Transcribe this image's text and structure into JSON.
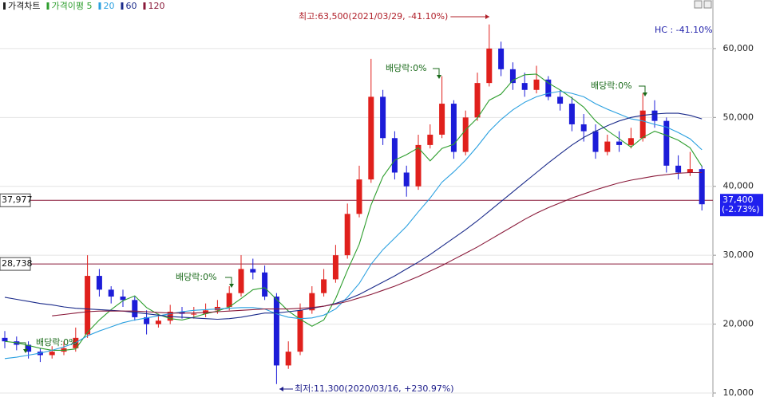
{
  "chart_data": {
    "type": "candlestick",
    "legend_title": "가격차트",
    "up_color": "#e0201c",
    "down_color": "#1c1cd8",
    "open": [
      18000,
      17500,
      17000,
      16000,
      15500,
      16000,
      16500,
      18500,
      27000,
      25000,
      24000,
      23500,
      21000,
      20000,
      20500,
      21800,
      21500,
      21500,
      22000,
      22500,
      24500,
      28000,
      27500,
      24000,
      14000,
      16000,
      22000,
      24500,
      26500,
      30000,
      36000,
      41000,
      53000,
      47000,
      42000,
      40000,
      46000,
      47500,
      52000,
      45000,
      50000,
      55000,
      60000,
      57000,
      55000,
      54000,
      55500,
      53000,
      52000,
      49000,
      48000,
      45000,
      46500,
      46000,
      47000,
      51000,
      49500,
      43000,
      42000,
      42500
    ],
    "high": [
      19000,
      18200,
      17500,
      16500,
      16800,
      17500,
      19500,
      30000,
      28000,
      25500,
      25000,
      24000,
      22000,
      21500,
      22800,
      22500,
      22500,
      23000,
      23500,
      25500,
      30000,
      29500,
      28500,
      24500,
      17500,
      23000,
      25500,
      28000,
      31500,
      37500,
      43000,
      58500,
      54000,
      48000,
      43000,
      47500,
      49000,
      56000,
      52500,
      51000,
      56500,
      63500,
      61000,
      58000,
      56500,
      57500,
      56000,
      54000,
      53000,
      50500,
      49000,
      47500,
      48000,
      48500,
      53500,
      52500,
      50000,
      44500,
      45000,
      43000
    ],
    "low": [
      16500,
      16200,
      15000,
      14500,
      15000,
      15500,
      16000,
      18000,
      24000,
      23000,
      22500,
      20500,
      18500,
      19500,
      20000,
      20800,
      20800,
      21000,
      21500,
      22000,
      24000,
      26500,
      23500,
      11300,
      13500,
      15500,
      21500,
      24000,
      26000,
      29500,
      35500,
      40500,
      46000,
      41000,
      38500,
      39500,
      45500,
      47000,
      44000,
      44500,
      49500,
      54500,
      56000,
      54000,
      53000,
      53500,
      52500,
      51000,
      48000,
      46500,
      44000,
      44500,
      45000,
      45500,
      46500,
      48500,
      42000,
      41000,
      41500,
      36500
    ],
    "close": [
      17500,
      17000,
      16000,
      15500,
      16000,
      16500,
      18000,
      27000,
      25000,
      24000,
      23500,
      21000,
      20000,
      20500,
      21800,
      21500,
      21500,
      22000,
      22500,
      24500,
      28000,
      27500,
      24000,
      14000,
      16000,
      22000,
      24500,
      26500,
      30000,
      36000,
      41000,
      53000,
      47000,
      42000,
      40000,
      46000,
      47500,
      52000,
      45000,
      50000,
      55000,
      60000,
      57000,
      55000,
      54000,
      55500,
      53000,
      52000,
      49000,
      48000,
      45000,
      46500,
      46000,
      47000,
      51000,
      49500,
      43000,
      42000,
      42500,
      37400
    ],
    "series": [
      {
        "name": "가격이평 5",
        "color": "#2e9e2e",
        "values": [
          17500,
          17300,
          16900,
          16500,
          16200,
          16200,
          16400,
          18800,
          20600,
          22100,
          23400,
          24100,
          22400,
          21400,
          20800,
          20600,
          21000,
          21500,
          21900,
          22500,
          23700,
          25000,
          25300,
          23600,
          21900,
          20700,
          19700,
          20600,
          23700,
          27800,
          31600,
          37300,
          41400,
          43800,
          44600,
          45600,
          43700,
          45500,
          46100,
          48200,
          49900,
          52500,
          53400,
          55400,
          56200,
          56300,
          55000,
          54000,
          52800,
          51500,
          49500,
          48100,
          46900,
          45700,
          47100,
          48000,
          47400,
          46700,
          45600,
          42900
        ]
      },
      {
        "name": "20",
        "color": "#2aa0e0",
        "values": [
          15000,
          15200,
          15500,
          15800,
          16200,
          16700,
          17300,
          18300,
          19000,
          19600,
          20200,
          20600,
          20900,
          21200,
          21500,
          21800,
          22000,
          22100,
          22200,
          22300,
          22400,
          22400,
          22200,
          21500,
          21000,
          20800,
          20900,
          21300,
          22200,
          23900,
          25900,
          28700,
          30800,
          32500,
          34200,
          36300,
          38300,
          40600,
          42100,
          43800,
          45800,
          48000,
          49700,
          51100,
          52200,
          53000,
          53500,
          53800,
          53500,
          53000,
          52000,
          51200,
          50500,
          49800,
          49500,
          49000,
          48600,
          47800,
          46900,
          45300
        ]
      },
      {
        "name": "60",
        "color": "#1a2a8a",
        "values": [
          23900,
          23600,
          23300,
          23000,
          22800,
          22500,
          22300,
          22200,
          22100,
          22000,
          21900,
          21700,
          21500,
          21300,
          21100,
          21000,
          20900,
          20800,
          20700,
          20800,
          21000,
          21300,
          21600,
          21600,
          21800,
          22000,
          22300,
          22600,
          23000,
          23600,
          24300,
          25200,
          26100,
          27000,
          28000,
          29000,
          30100,
          31300,
          32500,
          33700,
          35000,
          36400,
          37800,
          39200,
          40600,
          42000,
          43400,
          44700,
          46000,
          47100,
          48000,
          48800,
          49500,
          50000,
          50300,
          50500,
          50600,
          50600,
          50300,
          49800
        ]
      },
      {
        "name": "120",
        "color": "#8a1a3a",
        "values": [
          null,
          null,
          null,
          null,
          21200,
          21400,
          21600,
          21800,
          21900,
          21900,
          21900,
          21900,
          21800,
          21700,
          21600,
          21600,
          21600,
          21700,
          21800,
          21900,
          22000,
          22100,
          22200,
          22200,
          22200,
          22300,
          22400,
          22600,
          22900,
          23300,
          23800,
          24300,
          24900,
          25500,
          26200,
          26900,
          27700,
          28500,
          29400,
          30300,
          31200,
          32200,
          33200,
          34200,
          35200,
          36100,
          36900,
          37600,
          38300,
          38900,
          39500,
          40000,
          40500,
          40900,
          41200,
          41500,
          41700,
          41900,
          42000,
          42000
        ]
      }
    ],
    "ylim": [
      9420,
      67050
    ],
    "yticks": [
      {
        "value": 10000,
        "label": "10,000"
      },
      {
        "value": 20000,
        "label": "20,000"
      },
      {
        "value": 30000,
        "label": "30,000"
      },
      {
        "value": 40000,
        "label": "40,000"
      },
      {
        "value": 50000,
        "label": "50,000"
      },
      {
        "value": 60000,
        "label": "60,000"
      }
    ],
    "grid": true,
    "levels": [
      {
        "value": 37977,
        "label": "37,977"
      },
      {
        "value": 28738,
        "label": "28,738"
      }
    ],
    "level_color": "#8a1a3a",
    "last_price": {
      "value": 37400,
      "label": "37,400"
    },
    "last_change": "(-2.73%)",
    "high_note": "최고:63,500(2021/03/29, -41.10%)",
    "low_note": "최저:11,300(2020/03/16, +230.97%)",
    "dividend_notes": [
      "배당락:0%",
      "배당락:0%",
      "배당락:0%",
      "배당락:0%"
    ],
    "hc_note": "HC : -41.10%"
  }
}
